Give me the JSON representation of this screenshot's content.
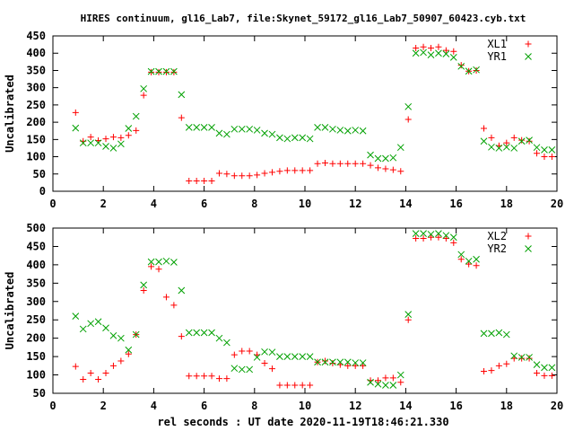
{
  "title": "HIRES continuum, gl16_Lab7, file:Skynet_59172_gl16_Lab7_50907_60423.cyb.txt",
  "xlabel": "rel seconds : UT date 2020-11-19T18:46:21.330",
  "colors": {
    "red": "#ff0000",
    "green": "#00a000"
  },
  "chart_data": [
    {
      "type": "scatter",
      "ylabel": "Uncalibrated",
      "xlim": [
        0,
        20
      ],
      "ylim": [
        0,
        450
      ],
      "xticks": [
        0,
        2,
        4,
        6,
        8,
        10,
        12,
        14,
        16,
        18,
        20
      ],
      "yticks": [
        0,
        50,
        100,
        150,
        200,
        250,
        300,
        350,
        400,
        450
      ],
      "legend_position": "top-right",
      "series": [
        {
          "name": "XL1",
          "marker": "plus",
          "color": "#ff0000",
          "points": [
            [
              0.9,
              228
            ],
            [
              1.2,
              145
            ],
            [
              1.5,
              157
            ],
            [
              1.8,
              147
            ],
            [
              2.1,
              152
            ],
            [
              2.4,
              157
            ],
            [
              2.7,
              155
            ],
            [
              3.0,
              162
            ],
            [
              3.3,
              176
            ],
            [
              3.6,
              278
            ],
            [
              3.9,
              345
            ],
            [
              4.2,
              345
            ],
            [
              4.5,
              345
            ],
            [
              4.8,
              345
            ],
            [
              5.1,
              213
            ],
            [
              5.4,
              30
            ],
            [
              5.7,
              30
            ],
            [
              6.0,
              30
            ],
            [
              6.3,
              30
            ],
            [
              6.6,
              52
            ],
            [
              6.9,
              50
            ],
            [
              7.2,
              45
            ],
            [
              7.5,
              45
            ],
            [
              7.8,
              45
            ],
            [
              8.1,
              47
            ],
            [
              8.4,
              52
            ],
            [
              8.7,
              55
            ],
            [
              9.0,
              58
            ],
            [
              9.3,
              60
            ],
            [
              9.6,
              60
            ],
            [
              9.9,
              60
            ],
            [
              10.2,
              60
            ],
            [
              10.5,
              80
            ],
            [
              10.8,
              82
            ],
            [
              11.1,
              80
            ],
            [
              11.4,
              80
            ],
            [
              11.7,
              80
            ],
            [
              12.0,
              80
            ],
            [
              12.3,
              80
            ],
            [
              12.6,
              75
            ],
            [
              12.9,
              68
            ],
            [
              13.2,
              65
            ],
            [
              13.5,
              62
            ],
            [
              13.8,
              58
            ],
            [
              14.1,
              208
            ],
            [
              14.4,
              415
            ],
            [
              14.7,
              418
            ],
            [
              15.0,
              415
            ],
            [
              15.3,
              418
            ],
            [
              15.6,
              408
            ],
            [
              15.9,
              405
            ],
            [
              16.2,
              365
            ],
            [
              16.5,
              348
            ],
            [
              16.8,
              350
            ],
            [
              17.1,
              182
            ],
            [
              17.4,
              155
            ],
            [
              17.7,
              132
            ],
            [
              18.0,
              140
            ],
            [
              18.3,
              155
            ],
            [
              18.6,
              148
            ],
            [
              18.9,
              145
            ],
            [
              19.2,
              110
            ],
            [
              19.5,
              100
            ],
            [
              19.8,
              100
            ]
          ]
        },
        {
          "name": "YR1",
          "marker": "cross",
          "color": "#00a000",
          "points": [
            [
              0.9,
              183
            ],
            [
              1.2,
              140
            ],
            [
              1.5,
              140
            ],
            [
              1.8,
              140
            ],
            [
              2.1,
              130
            ],
            [
              2.4,
              125
            ],
            [
              2.7,
              137
            ],
            [
              3.0,
              182
            ],
            [
              3.3,
              217
            ],
            [
              3.6,
              297
            ],
            [
              3.9,
              347
            ],
            [
              4.2,
              347
            ],
            [
              4.5,
              347
            ],
            [
              4.8,
              347
            ],
            [
              5.1,
              280
            ],
            [
              5.4,
              185
            ],
            [
              5.7,
              185
            ],
            [
              6.0,
              185
            ],
            [
              6.3,
              185
            ],
            [
              6.6,
              168
            ],
            [
              6.9,
              165
            ],
            [
              7.2,
              180
            ],
            [
              7.5,
              180
            ],
            [
              7.8,
              180
            ],
            [
              8.1,
              177
            ],
            [
              8.4,
              168
            ],
            [
              8.7,
              165
            ],
            [
              9.0,
              155
            ],
            [
              9.3,
              152
            ],
            [
              9.6,
              155
            ],
            [
              9.9,
              155
            ],
            [
              10.2,
              152
            ],
            [
              10.5,
              185
            ],
            [
              10.8,
              185
            ],
            [
              11.1,
              180
            ],
            [
              11.4,
              177
            ],
            [
              11.7,
              175
            ],
            [
              12.0,
              177
            ],
            [
              12.3,
              175
            ],
            [
              12.6,
              105
            ],
            [
              12.9,
              95
            ],
            [
              13.2,
              95
            ],
            [
              13.5,
              97
            ],
            [
              13.8,
              127
            ],
            [
              14.1,
              245
            ],
            [
              14.4,
              400
            ],
            [
              14.7,
              402
            ],
            [
              15.0,
              395
            ],
            [
              15.3,
              400
            ],
            [
              15.6,
              398
            ],
            [
              15.9,
              388
            ],
            [
              16.2,
              362
            ],
            [
              16.5,
              348
            ],
            [
              16.8,
              352
            ],
            [
              17.1,
              145
            ],
            [
              17.4,
              128
            ],
            [
              17.7,
              125
            ],
            [
              18.0,
              128
            ],
            [
              18.3,
              125
            ],
            [
              18.6,
              145
            ],
            [
              18.9,
              148
            ],
            [
              19.2,
              127
            ],
            [
              19.5,
              120
            ],
            [
              19.8,
              120
            ]
          ]
        }
      ]
    },
    {
      "type": "scatter",
      "ylabel": "Uncalibrated",
      "xlim": [
        0,
        20
      ],
      "ylim": [
        50,
        500
      ],
      "xticks": [
        0,
        2,
        4,
        6,
        8,
        10,
        12,
        14,
        16,
        18,
        20
      ],
      "yticks": [
        50,
        100,
        150,
        200,
        250,
        300,
        350,
        400,
        450,
        500
      ],
      "legend_position": "top-right",
      "series": [
        {
          "name": "XL2",
          "marker": "plus",
          "color": "#ff0000",
          "points": [
            [
              0.9,
              123
            ],
            [
              1.2,
              88
            ],
            [
              1.5,
              105
            ],
            [
              1.8,
              88
            ],
            [
              2.1,
              105
            ],
            [
              2.4,
              125
            ],
            [
              2.7,
              138
            ],
            [
              3.0,
              157
            ],
            [
              3.3,
              210
            ],
            [
              3.6,
              330
            ],
            [
              3.9,
              395
            ],
            [
              4.2,
              388
            ],
            [
              4.5,
              312
            ],
            [
              4.8,
              290
            ],
            [
              5.1,
              205
            ],
            [
              5.4,
              97
            ],
            [
              5.7,
              97
            ],
            [
              6.0,
              97
            ],
            [
              6.3,
              97
            ],
            [
              6.6,
              90
            ],
            [
              6.9,
              90
            ],
            [
              7.2,
              155
            ],
            [
              7.5,
              165
            ],
            [
              7.8,
              165
            ],
            [
              8.1,
              155
            ],
            [
              8.4,
              132
            ],
            [
              8.7,
              117
            ],
            [
              9.0,
              72
            ],
            [
              9.3,
              72
            ],
            [
              9.6,
              72
            ],
            [
              9.9,
              72
            ],
            [
              10.2,
              72
            ],
            [
              10.5,
              135
            ],
            [
              10.8,
              138
            ],
            [
              11.1,
              132
            ],
            [
              11.4,
              128
            ],
            [
              11.7,
              125
            ],
            [
              12.0,
              125
            ],
            [
              12.3,
              125
            ],
            [
              12.6,
              85
            ],
            [
              12.9,
              85
            ],
            [
              13.2,
              92
            ],
            [
              13.5,
              92
            ],
            [
              13.8,
              80
            ],
            [
              14.1,
              250
            ],
            [
              14.4,
              472
            ],
            [
              14.7,
              472
            ],
            [
              15.0,
              475
            ],
            [
              15.3,
              475
            ],
            [
              15.6,
              472
            ],
            [
              15.9,
              460
            ],
            [
              16.2,
              415
            ],
            [
              16.5,
              402
            ],
            [
              16.8,
              398
            ],
            [
              17.1,
              110
            ],
            [
              17.4,
              112
            ],
            [
              17.7,
              125
            ],
            [
              18.0,
              130
            ],
            [
              18.3,
              145
            ],
            [
              18.6,
              145
            ],
            [
              18.9,
              145
            ],
            [
              19.2,
              105
            ],
            [
              19.5,
              98
            ],
            [
              19.8,
              98
            ]
          ]
        },
        {
          "name": "YR2",
          "marker": "cross",
          "color": "#00a000",
          "points": [
            [
              0.9,
              260
            ],
            [
              1.2,
              225
            ],
            [
              1.5,
              240
            ],
            [
              1.8,
              245
            ],
            [
              2.1,
              228
            ],
            [
              2.4,
              207
            ],
            [
              2.7,
              200
            ],
            [
              3.0,
              168
            ],
            [
              3.3,
              210
            ],
            [
              3.6,
              345
            ],
            [
              3.9,
              408
            ],
            [
              4.2,
              408
            ],
            [
              4.5,
              410
            ],
            [
              4.8,
              407
            ],
            [
              5.1,
              330
            ],
            [
              5.4,
              215
            ],
            [
              5.7,
              215
            ],
            [
              6.0,
              215
            ],
            [
              6.3,
              215
            ],
            [
              6.6,
              200
            ],
            [
              6.9,
              188
            ],
            [
              7.2,
              118
            ],
            [
              7.5,
              115
            ],
            [
              7.8,
              115
            ],
            [
              8.1,
              148
            ],
            [
              8.4,
              163
            ],
            [
              8.7,
              162
            ],
            [
              9.0,
              150
            ],
            [
              9.3,
              150
            ],
            [
              9.6,
              150
            ],
            [
              9.9,
              150
            ],
            [
              10.2,
              150
            ],
            [
              10.5,
              135
            ],
            [
              10.8,
              135
            ],
            [
              11.1,
              135
            ],
            [
              11.4,
              135
            ],
            [
              11.7,
              135
            ],
            [
              12.0,
              133
            ],
            [
              12.3,
              133
            ],
            [
              12.6,
              80
            ],
            [
              12.9,
              75
            ],
            [
              13.2,
              72
            ],
            [
              13.5,
              72
            ],
            [
              13.8,
              100
            ],
            [
              14.1,
              265
            ],
            [
              14.4,
              485
            ],
            [
              14.7,
              485
            ],
            [
              15.0,
              483
            ],
            [
              15.3,
              485
            ],
            [
              15.6,
              480
            ],
            [
              15.9,
              475
            ],
            [
              16.2,
              428
            ],
            [
              16.5,
              410
            ],
            [
              16.8,
              415
            ],
            [
              17.1,
              213
            ],
            [
              17.4,
              213
            ],
            [
              17.7,
              215
            ],
            [
              18.0,
              210
            ],
            [
              18.3,
              152
            ],
            [
              18.6,
              148
            ],
            [
              18.9,
              148
            ],
            [
              19.2,
              128
            ],
            [
              19.5,
              120
            ],
            [
              19.8,
              120
            ]
          ]
        }
      ]
    }
  ]
}
